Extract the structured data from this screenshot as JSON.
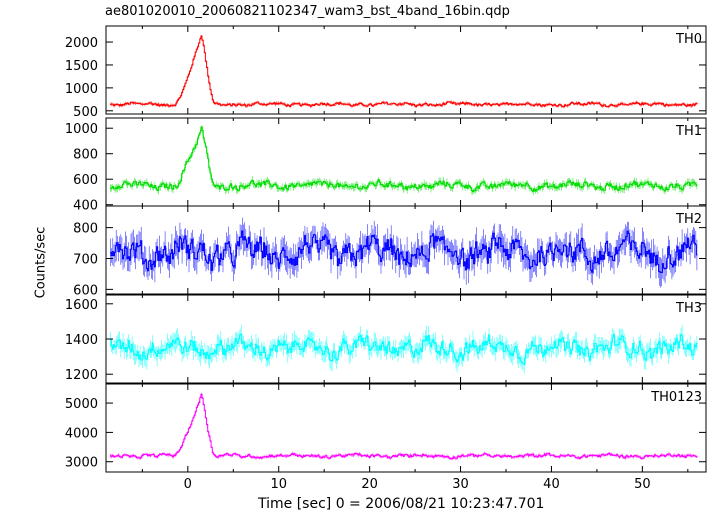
{
  "chart_data": {
    "type": "line",
    "title": "ae801020010_20060821102347_wam3_bst_4band_16bin.qdp",
    "xlabel": "Time [sec] 0 = 2006/08/21 10:23:47.701",
    "ylabel": "Counts/sec",
    "xlim": [
      -9,
      57
    ],
    "x_ticks": [
      0,
      10,
      20,
      30,
      40,
      50
    ],
    "x_tick_labels": [
      "0",
      "10",
      "20",
      "30",
      "40",
      "50"
    ],
    "panels": [
      {
        "name": "TH0",
        "color": "#ff0000",
        "ylim": [
          430,
          2350
        ],
        "y_ticks": [
          500,
          1000,
          1500,
          2000
        ],
        "y_tick_labels": [
          "500",
          "1000",
          "1500",
          "2000"
        ],
        "baseline": 640,
        "noise": 50,
        "burst": {
          "start": -1.5,
          "peak": 1.5,
          "end": 2.8,
          "peak_value": 2200
        }
      },
      {
        "name": "TH1",
        "color": "#00dd00",
        "ylim": [
          390,
          1080
        ],
        "y_ticks": [
          400,
          600,
          800,
          1000
        ],
        "y_tick_labels": [
          "400",
          "600",
          "800",
          "1000"
        ],
        "baseline": 550,
        "noise": 40,
        "burst": {
          "start": -1.5,
          "peak": 1.5,
          "end": 2.8,
          "peak_value": 1000
        }
      },
      {
        "name": "TH2",
        "color": "#0000ff",
        "ylim": [
          585,
          870
        ],
        "y_ticks": [
          600,
          700,
          800
        ],
        "y_tick_labels": [
          "600",
          "700",
          "800"
        ],
        "baseline": 720,
        "noise": 60,
        "burst": null
      },
      {
        "name": "TH3",
        "color": "#00ffff",
        "ylim": [
          1150,
          1650
        ],
        "y_ticks": [
          1200,
          1400,
          1600
        ],
        "y_tick_labels": [
          "1200",
          "1400",
          "1600"
        ],
        "baseline": 1350,
        "noise": 70,
        "burst": null
      },
      {
        "name": "TH0123",
        "color": "#ff00ff",
        "ylim": [
          2650,
          5650
        ],
        "y_ticks": [
          3000,
          4000,
          5000
        ],
        "y_tick_labels": [
          "3000",
          "4000",
          "5000"
        ],
        "baseline": 3200,
        "noise": 80,
        "burst": {
          "start": -1.5,
          "peak": 1.5,
          "end": 2.8,
          "peak_value": 5400
        }
      }
    ]
  }
}
